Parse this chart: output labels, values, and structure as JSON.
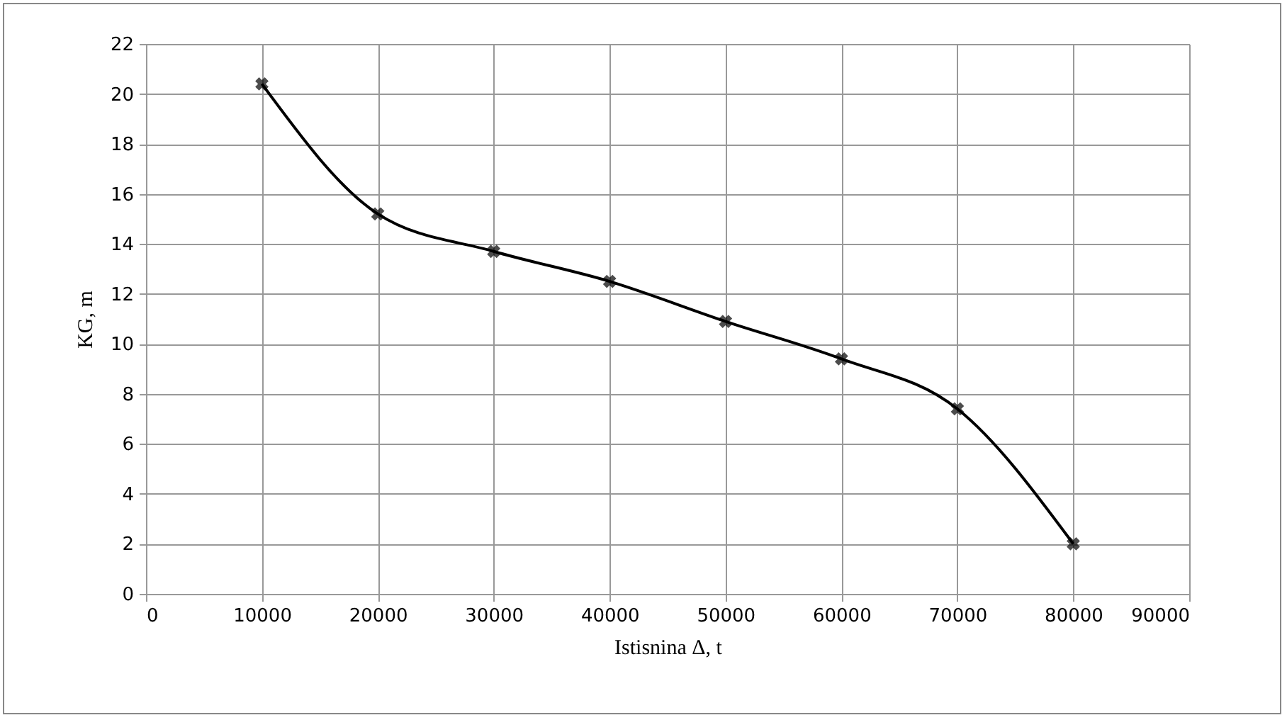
{
  "chart_data": {
    "type": "line",
    "xlabel": "Istisnina Δ, t",
    "ylabel": "KG, m",
    "x": [
      10000,
      20000,
      30000,
      40000,
      50000,
      60000,
      70000,
      80000
    ],
    "series": [
      {
        "color": "#000000",
        "values": [
          20.4,
          15.2,
          13.7,
          12.5,
          10.9,
          9.4,
          7.4,
          2.0
        ]
      }
    ],
    "xlim": [
      0,
      90000
    ],
    "xticks": [
      0,
      10000,
      20000,
      30000,
      40000,
      50000,
      60000,
      70000,
      80000,
      90000
    ],
    "ylim": [
      0,
      22
    ],
    "yticks": [
      0,
      2,
      4,
      6,
      8,
      10,
      12,
      14,
      16,
      18,
      20,
      22
    ],
    "grid": true,
    "marker": "cross",
    "line_style": "solid"
  }
}
